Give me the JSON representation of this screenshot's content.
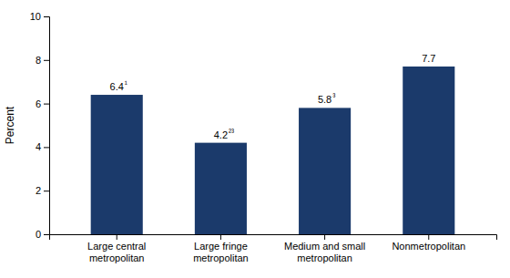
{
  "chart_data": {
    "type": "bar",
    "categories": [
      "Large central\nmetropolitan",
      "Large fringe\nmetropolitan",
      "Medium and small\nmetropolitan",
      "Nonmetropolitan"
    ],
    "values": [
      6.4,
      4.2,
      5.8,
      7.7
    ],
    "color": "#1b3a6b",
    "annotations": [
      "¹",
      "²³",
      "³",
      null
    ],
    "ylabel": "Percent",
    "ylim": [
      0,
      10
    ],
    "yticks": [
      0,
      2,
      4,
      6,
      8,
      10
    ],
    "grid": false,
    "data_labels": true
  }
}
